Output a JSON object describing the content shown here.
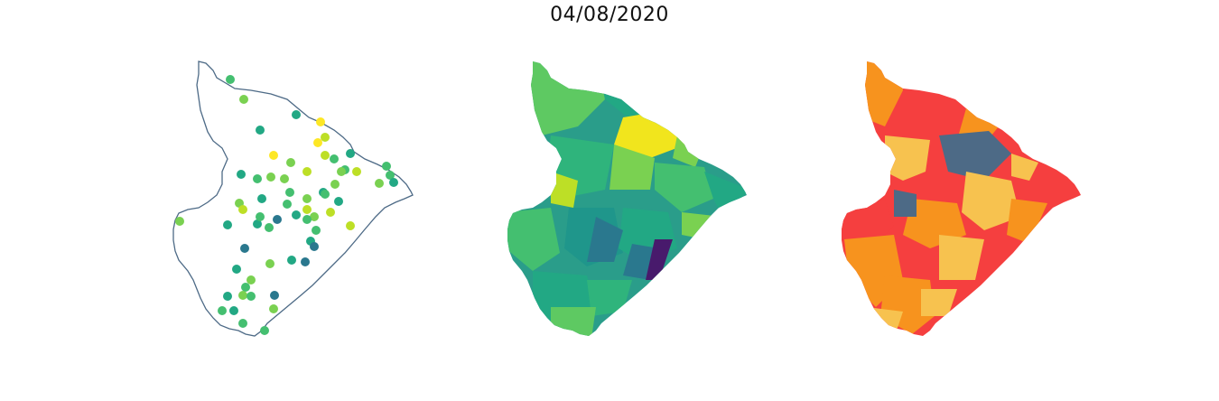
{
  "title": "04/08/2020",
  "colors": {
    "outline": "#4d6a86",
    "viridis": [
      "#481a6c",
      "#2a788e",
      "#22a884",
      "#44bf70",
      "#7ad151",
      "#bddf26",
      "#fde725"
    ],
    "risk": [
      "#4d6a86",
      "#f7c24f",
      "#f7931e",
      "#f53f3f"
    ]
  }
}
